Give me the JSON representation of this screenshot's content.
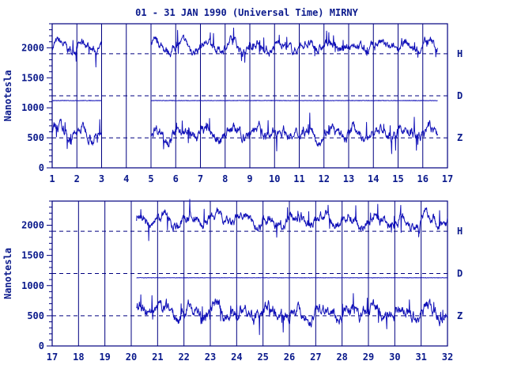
{
  "chart_data": {
    "type": "line",
    "title": "01 - 31 JAN 1990 (Universal Time) MIRNY",
    "ylabel": "Nanotesla",
    "ylim": [
      0,
      2400
    ],
    "yticks": [
      0,
      500,
      1000,
      1500,
      2000
    ],
    "series_labels": [
      "H",
      "D",
      "Z"
    ],
    "reference_levels": {
      "H": 1900,
      "D": 1200,
      "Z": 500
    },
    "colors": {
      "trace": "#1010b8",
      "axes": "#000080",
      "text": "#0b1a8c"
    },
    "panels": [
      {
        "xlim": [
          1,
          17
        ],
        "xticks": [
          "1",
          "2",
          "3",
          "4",
          "5",
          "6",
          "7",
          "8",
          "9",
          "10",
          "11",
          "12",
          "13",
          "14",
          "15",
          "16",
          "17"
        ],
        "segments": [
          {
            "from": 1,
            "to": 3
          },
          {
            "from": 5,
            "to": 16.6
          }
        ],
        "series": [
          {
            "name": "H",
            "mean": 2020,
            "amplitude": 110
          },
          {
            "name": "D",
            "mean": 1120,
            "amplitude": 8
          },
          {
            "name": "Z",
            "mean": 580,
            "amplitude": 130
          }
        ]
      },
      {
        "xlim": [
          17,
          32
        ],
        "xticks": [
          "17",
          "18",
          "19",
          "20",
          "21",
          "22",
          "23",
          "24",
          "25",
          "26",
          "27",
          "28",
          "29",
          "30",
          "31",
          "32"
        ],
        "segments": [
          {
            "from": 20.2,
            "to": 32
          }
        ],
        "series": [
          {
            "name": "H",
            "mean": 2080,
            "amplitude": 130
          },
          {
            "name": "D",
            "mean": 1130,
            "amplitude": 6
          },
          {
            "name": "Z",
            "mean": 560,
            "amplitude": 150
          }
        ]
      }
    ]
  }
}
